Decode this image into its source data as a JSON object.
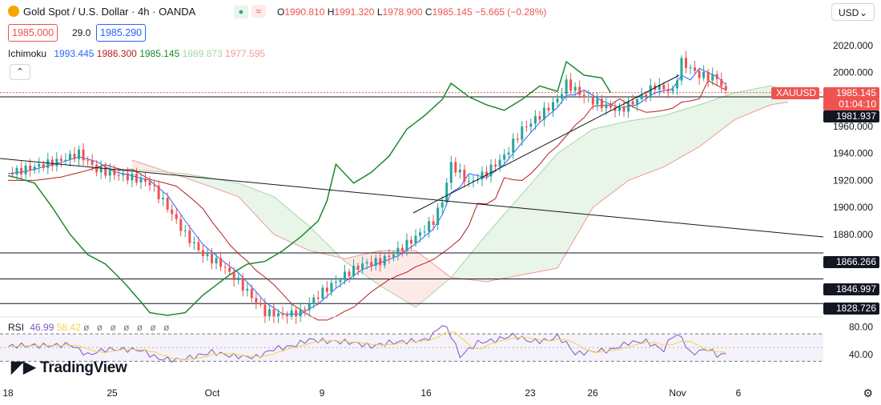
{
  "header": {
    "title": "Gold Spot / U.S. Dollar · 4h · OANDA",
    "open_label": "O",
    "open": "1990.810",
    "high_label": "H",
    "high": "1991.320",
    "low_label": "L",
    "low": "1978.900",
    "close_label": "C",
    "close": "1985.145",
    "change": "−5.665 (−0.28%)",
    "sell_price": "1985.000",
    "spread": "29.0",
    "buy_price": "1985.290",
    "currency": "USD"
  },
  "ichimoku": {
    "label": "Ichimoku",
    "tenkan": "1993.445",
    "kijun": "1986.300",
    "chikou": "1985.145",
    "span_a": "1989.873",
    "span_b": "1977.595",
    "colors": {
      "tenkan": "#2962ff",
      "kijun": "#b71c1c",
      "chikou": "#1b8a2e",
      "span_a": "#a5d6a7",
      "span_b": "#ef9a9a"
    }
  },
  "rsi": {
    "label": "RSI",
    "value": "46.99",
    "ma": "58.42",
    "upper": 70,
    "lower": 30,
    "tick_labels": [
      "80.00",
      "40.00"
    ]
  },
  "price_tags": {
    "symbol": "XAUUSD",
    "last": "1985.145",
    "countdown": "01:04:10",
    "line1": "1981.937",
    "line2": "1866.266",
    "line3": "1846.997",
    "line4": "1828.726"
  },
  "x_ticks": [
    "18",
    "25",
    "Oct",
    "9",
    "16",
    "23",
    "26",
    "Nov",
    "6"
  ],
  "brand": "TradingView",
  "chart_data": {
    "type": "candlestick",
    "symbol": "XAUUSD",
    "timeframe": "4h",
    "y_axis": {
      "min": 1820,
      "max": 2030,
      "ticks": [
        2020,
        2000,
        1980,
        1960,
        1940,
        1920,
        1900,
        1880,
        1860,
        1840
      ]
    },
    "horizontal_lines": [
      1981.937,
      1866.266,
      1846.997,
      1828.726
    ],
    "close_path": [
      {
        "d": 0,
        "v": 1925
      },
      {
        "d": 3,
        "v": 1930
      },
      {
        "d": 6,
        "v": 1935
      },
      {
        "d": 8,
        "v": 1940
      },
      {
        "d": 10,
        "v": 1928
      },
      {
        "d": 14,
        "v": 1922
      },
      {
        "d": 16,
        "v": 1918
      },
      {
        "d": 18,
        "v": 1900
      },
      {
        "d": 20,
        "v": 1880
      },
      {
        "d": 22,
        "v": 1865
      },
      {
        "d": 24,
        "v": 1858
      },
      {
        "d": 26,
        "v": 1845
      },
      {
        "d": 28,
        "v": 1830
      },
      {
        "d": 29,
        "v": 1822
      },
      {
        "d": 31,
        "v": 1820
      },
      {
        "d": 33,
        "v": 1822
      },
      {
        "d": 35,
        "v": 1835
      },
      {
        "d": 38,
        "v": 1850
      },
      {
        "d": 40,
        "v": 1858
      },
      {
        "d": 42,
        "v": 1860
      },
      {
        "d": 44,
        "v": 1868
      },
      {
        "d": 46,
        "v": 1878
      },
      {
        "d": 48,
        "v": 1890
      },
      {
        "d": 49,
        "v": 1905
      },
      {
        "d": 50,
        "v": 1932
      },
      {
        "d": 52,
        "v": 1918
      },
      {
        "d": 54,
        "v": 1926
      },
      {
        "d": 56,
        "v": 1938
      },
      {
        "d": 58,
        "v": 1958
      },
      {
        "d": 60,
        "v": 1968
      },
      {
        "d": 62,
        "v": 1980
      },
      {
        "d": 63,
        "v": 1992
      },
      {
        "d": 65,
        "v": 1982
      },
      {
        "d": 67,
        "v": 1976
      },
      {
        "d": 69,
        "v": 1972
      },
      {
        "d": 71,
        "v": 1980
      },
      {
        "d": 73,
        "v": 1990
      },
      {
        "d": 75,
        "v": 1986
      },
      {
        "d": 76,
        "v": 2008
      },
      {
        "d": 78,
        "v": 1998
      },
      {
        "d": 80,
        "v": 1996
      },
      {
        "d": 81,
        "v": 1985
      }
    ],
    "cloud": [
      {
        "d": 14,
        "a": 1928,
        "b": 1935
      },
      {
        "d": 20,
        "a": 1925,
        "b": 1922
      },
      {
        "d": 26,
        "a": 1918,
        "b": 1908
      },
      {
        "d": 30,
        "a": 1908,
        "b": 1880
      },
      {
        "d": 34,
        "a": 1886,
        "b": 1868
      },
      {
        "d": 38,
        "a": 1860,
        "b": 1862
      },
      {
        "d": 42,
        "a": 1842,
        "b": 1868
      },
      {
        "d": 46,
        "a": 1826,
        "b": 1868
      },
      {
        "d": 50,
        "a": 1848,
        "b": 1848
      },
      {
        "d": 54,
        "a": 1880,
        "b": 1845
      },
      {
        "d": 58,
        "a": 1910,
        "b": 1850
      },
      {
        "d": 62,
        "a": 1940,
        "b": 1855
      },
      {
        "d": 66,
        "a": 1958,
        "b": 1900
      },
      {
        "d": 70,
        "a": 1964,
        "b": 1920
      },
      {
        "d": 74,
        "a": 1968,
        "b": 1930
      },
      {
        "d": 78,
        "a": 1976,
        "b": 1945
      },
      {
        "d": 82,
        "a": 1985,
        "b": 1965
      },
      {
        "d": 86,
        "a": 1990,
        "b": 1976
      },
      {
        "d": 88,
        "a": 1987,
        "b": 1978
      }
    ]
  }
}
